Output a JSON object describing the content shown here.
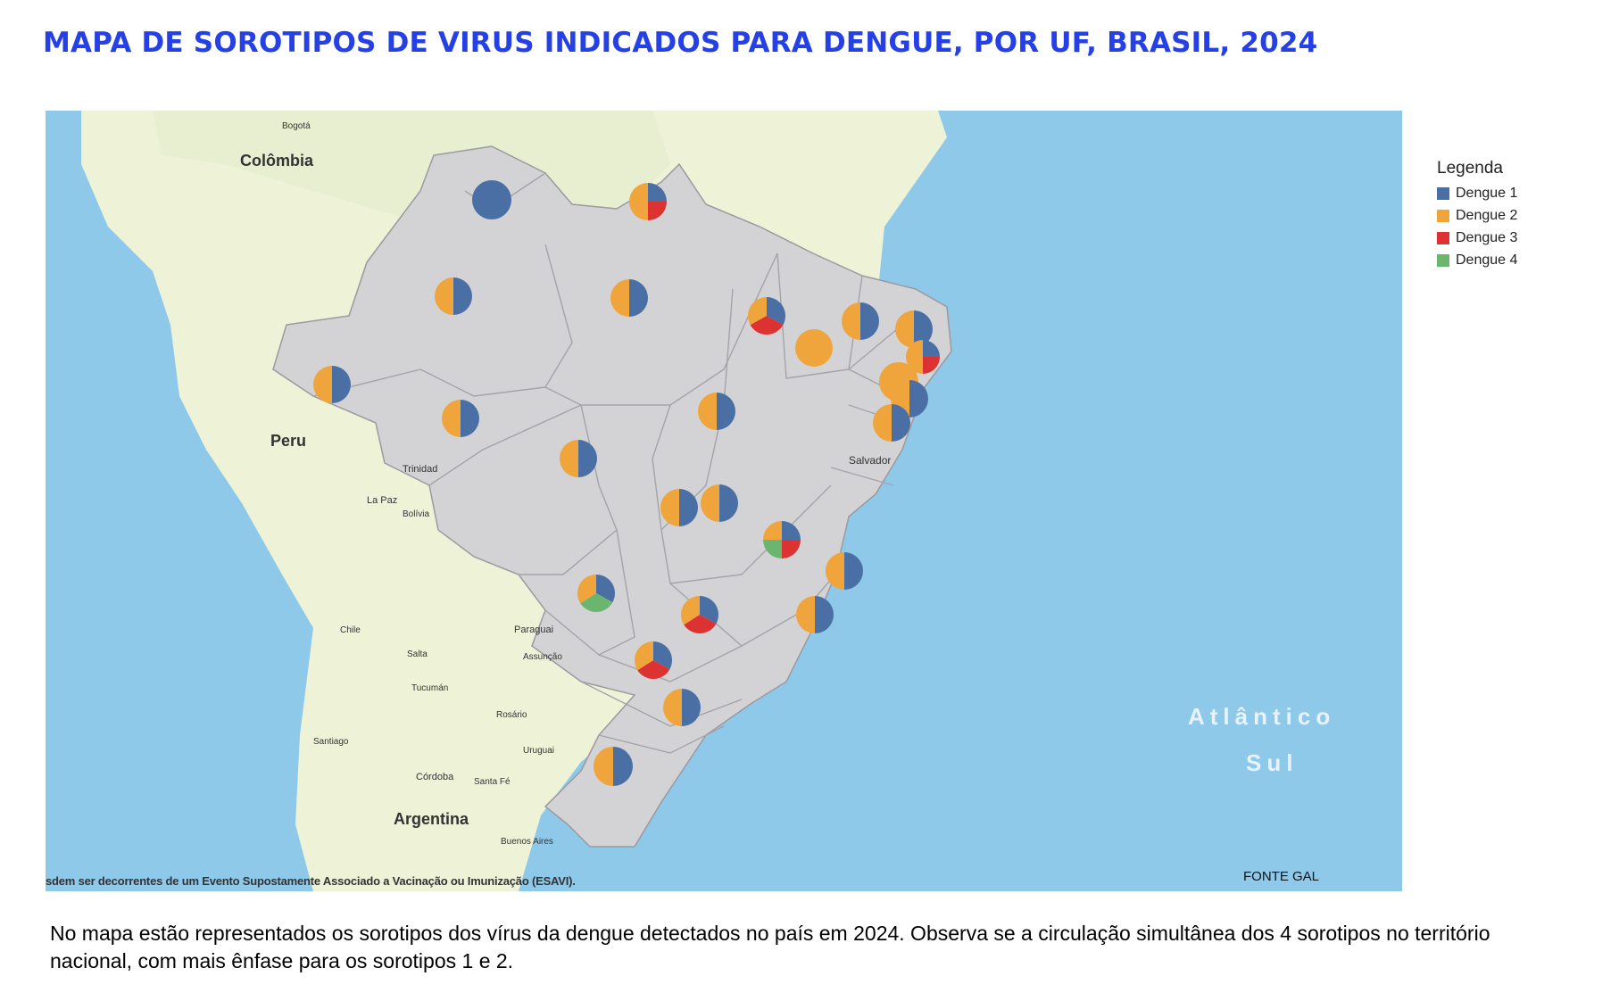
{
  "title": "MAPA DE SOROTIPOS DE VIRUS INDICADOS PARA DENGUE, POR UF, BRASIL, 2024",
  "legend": {
    "title": "Legenda",
    "items": [
      {
        "label": "Dengue 1",
        "color": "#4a6fa5"
      },
      {
        "label": "Dengue 2",
        "color": "#f0a43c"
      },
      {
        "label": "Dengue 3",
        "color": "#dc3232"
      },
      {
        "label": "Dengue 4",
        "color": "#6cb56f"
      }
    ]
  },
  "map_labels": {
    "colombia": "Colômbia",
    "peru": "Peru",
    "argentina": "Argentina",
    "salvador": "Salvador",
    "atlantico": "Atlântico",
    "sul": "Sul",
    "bogota": "Bogotá",
    "paraguai": "Paraguai",
    "trinidad": "Trinidad",
    "la_paz": "La Paz",
    "bolivia": "Bolívia",
    "uruguai": "Uruguai",
    "chile": "Chile",
    "cordoba": "Córdoba",
    "rosario": "Rosário",
    "santa_fe": "Santa Fé",
    "tucuman": "Tucumán",
    "salta": "Salta",
    "asuncion": "Assunção",
    "santiago": "Santiago",
    "buenos_aires": "Buenos Aires"
  },
  "state_pies": [
    {
      "state": "RR",
      "d1": 1.0,
      "d2": 0.0,
      "d3": 0.0,
      "d4": 0.0
    },
    {
      "state": "AP",
      "d1": 0.25,
      "d2": 0.5,
      "d3": 0.25,
      "d4": 0.0
    },
    {
      "state": "AM",
      "d1": 0.5,
      "d2": 0.5,
      "d3": 0.0,
      "d4": 0.0
    },
    {
      "state": "PA",
      "d1": 0.5,
      "d2": 0.5,
      "d3": 0.0,
      "d4": 0.0
    },
    {
      "state": "AC",
      "d1": 0.5,
      "d2": 0.5,
      "d3": 0.0,
      "d4": 0.0
    },
    {
      "state": "RO",
      "d1": 0.5,
      "d2": 0.5,
      "d3": 0.0,
      "d4": 0.0
    },
    {
      "state": "MT",
      "d1": 0.5,
      "d2": 0.5,
      "d3": 0.0,
      "d4": 0.0
    },
    {
      "state": "MA",
      "d1": 0.33,
      "d2": 0.33,
      "d3": 0.34,
      "d4": 0.0
    },
    {
      "state": "PI",
      "d1": 0.0,
      "d2": 1.0,
      "d3": 0.0,
      "d4": 0.0
    },
    {
      "state": "CE",
      "d1": 0.5,
      "d2": 0.5,
      "d3": 0.0,
      "d4": 0.0
    },
    {
      "state": "RN",
      "d1": 0.5,
      "d2": 0.5,
      "d3": 0.0,
      "d4": 0.0
    },
    {
      "state": "PB",
      "d1": 0.25,
      "d2": 0.5,
      "d3": 0.25,
      "d4": 0.0
    },
    {
      "state": "PE",
      "d1": 0.0,
      "d2": 1.0,
      "d3": 0.0,
      "d4": 0.0
    },
    {
      "state": "AL",
      "d1": 0.5,
      "d2": 0.5,
      "d3": 0.0,
      "d4": 0.0
    },
    {
      "state": "SE",
      "d1": 0.5,
      "d2": 0.5,
      "d3": 0.0,
      "d4": 0.0
    },
    {
      "state": "TO",
      "d1": 0.5,
      "d2": 0.5,
      "d3": 0.0,
      "d4": 0.0
    },
    {
      "state": "GO",
      "d1": 0.5,
      "d2": 0.5,
      "d3": 0.0,
      "d4": 0.0
    },
    {
      "state": "DF",
      "d1": 0.5,
      "d2": 0.5,
      "d3": 0.0,
      "d4": 0.0
    },
    {
      "state": "MG",
      "d1": 0.25,
      "d2": 0.25,
      "d3": 0.25,
      "d4": 0.25
    },
    {
      "state": "MS",
      "d1": 0.33,
      "d2": 0.34,
      "d3": 0.0,
      "d4": 0.33
    },
    {
      "state": "SP",
      "d1": 0.33,
      "d2": 0.34,
      "d3": 0.33,
      "d4": 0.0
    },
    {
      "state": "ES",
      "d1": 0.5,
      "d2": 0.5,
      "d3": 0.0,
      "d4": 0.0
    },
    {
      "state": "RJ",
      "d1": 0.5,
      "d2": 0.5,
      "d3": 0.0,
      "d4": 0.0
    },
    {
      "state": "PR",
      "d1": 0.33,
      "d2": 0.34,
      "d3": 0.33,
      "d4": 0.0
    },
    {
      "state": "SC",
      "d1": 0.5,
      "d2": 0.5,
      "d3": 0.0,
      "d4": 0.0
    },
    {
      "state": "RS",
      "d1": 0.5,
      "d2": 0.5,
      "d3": 0.0,
      "d4": 0.0
    }
  ],
  "footnote": "sdem ser decorrentes de um Evento Supostamente Associado a Vacinação ou Imunização (ESAVI).",
  "source": "FONTE GAL",
  "description": "No mapa estão representados os sorotipos dos vírus da dengue detectados no país em 2024. Observa se a circulação simultânea dos 4 sorotipos no território nacional, com mais ênfase para os sorotipos 1 e 2."
}
